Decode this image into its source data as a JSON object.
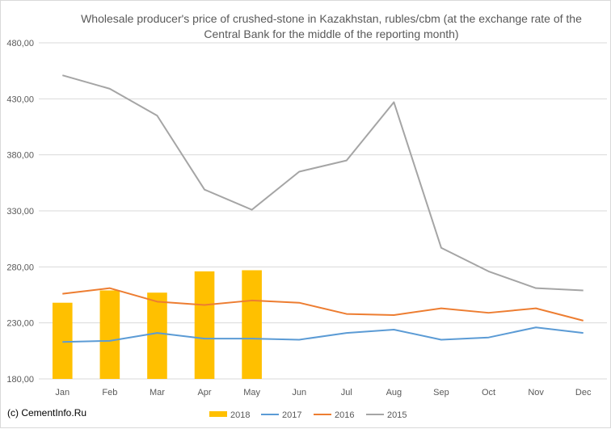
{
  "chart_data": {
    "type": "bar+line",
    "title_lines": [
      "Wholesale producer's price of crushed-stone in Kazakhstan, rubles/cbm (at the exchange rate of the",
      "Central Bank for the middle of the reporting month)"
    ],
    "categories": [
      "Jan",
      "Feb",
      "Mar",
      "Apr",
      "May",
      "Jun",
      "Jul",
      "Aug",
      "Sep",
      "Oct",
      "Nov",
      "Dec"
    ],
    "y_ticks": [
      "180,00",
      "230,00",
      "280,00",
      "330,00",
      "380,00",
      "430,00",
      "480,00"
    ],
    "ylim": [
      180,
      480
    ],
    "grid": "horizontal",
    "legend_position": "bottom",
    "series": [
      {
        "name": "2018",
        "kind": "bar",
        "color": "#ffc000",
        "values": [
          248,
          259,
          257,
          276,
          277,
          null,
          null,
          null,
          null,
          null,
          null,
          null
        ]
      },
      {
        "name": "2017",
        "kind": "line",
        "color": "#5b9bd5",
        "values": [
          213,
          214,
          221,
          216,
          216,
          215,
          221,
          224,
          215,
          217,
          226,
          221
        ]
      },
      {
        "name": "2016",
        "kind": "line",
        "color": "#ed7d31",
        "values": [
          256,
          261,
          249,
          246,
          250,
          248,
          238,
          237,
          243,
          239,
          243,
          232
        ]
      },
      {
        "name": "2015",
        "kind": "line",
        "color": "#a5a5a5",
        "values": [
          451,
          439,
          415,
          349,
          331,
          365,
          375,
          427,
          297,
          276,
          261,
          259
        ]
      }
    ]
  },
  "copyright": "(c) CementInfo.Ru"
}
